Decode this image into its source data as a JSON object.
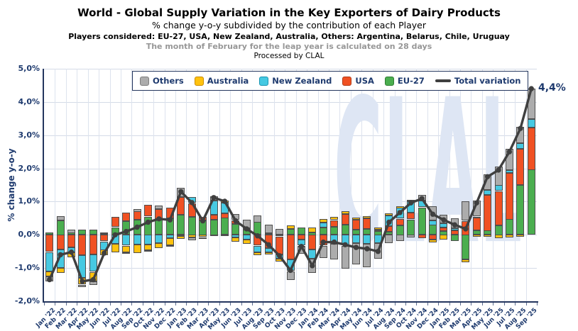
{
  "header": {
    "title": "World - Global Supply Variation in the Key Exporters of Dairy Products",
    "subtitle": "% change y-o-y subdivided by the contribution of each Player",
    "players_line": "Players considered: EU-27, USA, New Zealand, Australia, Others: Argentina, Belarus, Chile, Uruguay",
    "note": "The month of February for the leap year is calculated on 28 days",
    "processed_by": "Processed by CLAL"
  },
  "watermark": "CLAL",
  "annotation": {
    "label": "4,4%"
  },
  "chart_data": {
    "type": "bar",
    "subtype": "stacked-bars-with-total-line",
    "title": "World - Global Supply Variation in the Key Exporters of Dairy Products",
    "xlabel": "",
    "ylabel": "% change y-o-y",
    "ylim": [
      -2.0,
      5.0
    ],
    "grid": true,
    "legend_position": "top",
    "ytick_labels": [
      "5,0%",
      "4,0%",
      "3,0%",
      "2,0%",
      "1,0%",
      "0,0%",
      "-1,0%",
      "-2,0%"
    ],
    "categories": [
      "Jan '22",
      "Feb '22",
      "Mar '22",
      "Apr '22",
      "May '22",
      "Jun '22",
      "Jul '22",
      "Aug '22",
      "Sep '22",
      "Oct '22",
      "Nov '22",
      "Dec '22",
      "Jan '23",
      "Feb '23",
      "Mar '23",
      "Apr '23",
      "May '23",
      "Jun '23",
      "Jul '23",
      "Aug '23",
      "Sep '23",
      "Oct '23",
      "Nov '23",
      "Dec '23",
      "Jan '24",
      "Feb '24",
      "Mar '24",
      "Apr '24",
      "May '24",
      "Jun '24",
      "Jul '24",
      "Aug '24",
      "Sep '24",
      "Oct '24",
      "Nov '24",
      "Dec '24",
      "Jan '25",
      "Feb '25",
      "Mar '25",
      "Apr '25",
      "May '25",
      "Jun '25",
      "Jul '25",
      "Aug '25",
      "Sep '25"
    ],
    "series": [
      {
        "name": "Others",
        "color": "#ACACAC",
        "border": "#7e7e7e",
        "values": [
          -0.15,
          0.12,
          0.1,
          -0.06,
          -0.1,
          0.03,
          0.0,
          -0.03,
          0.08,
          -0.05,
          0.1,
          -0.04,
          0.28,
          -0.08,
          -0.05,
          0.13,
          -0.03,
          0.18,
          0.25,
          0.21,
          0.25,
          0.17,
          -0.25,
          -0.21,
          -0.42,
          -0.36,
          -0.48,
          -0.68,
          -0.64,
          -0.7,
          -0.48,
          -0.26,
          -0.2,
          -0.09,
          0.18,
          0.42,
          0.26,
          0.3,
          0.58,
          0.47,
          0.46,
          0.57,
          0.64,
          0.5,
          0.92
        ]
      },
      {
        "name": "Australia",
        "color": "#FFC20E",
        "border": "#c98a00",
        "values": [
          -0.16,
          -0.16,
          -0.16,
          -0.2,
          -0.28,
          -0.18,
          -0.25,
          -0.2,
          -0.25,
          -0.17,
          -0.15,
          -0.22,
          -0.08,
          -0.08,
          -0.07,
          -0.04,
          0.07,
          -0.12,
          -0.12,
          -0.09,
          -0.07,
          -0.08,
          0.11,
          -0.02,
          0.14,
          0.1,
          0.09,
          0.08,
          0.06,
          0.06,
          0.07,
          0.06,
          0.06,
          0.05,
          0.0,
          -0.09,
          -0.15,
          0.0,
          -0.08,
          -0.06,
          -0.06,
          -0.11,
          -0.09,
          -0.06,
          0.0
        ]
      },
      {
        "name": "New Zealand",
        "color": "#46C9E2",
        "border": "#1895b2",
        "values": [
          -0.58,
          -0.55,
          -0.14,
          -0.68,
          -0.52,
          -0.25,
          -0.28,
          -0.33,
          -0.3,
          -0.3,
          -0.25,
          -0.1,
          -0.03,
          0.18,
          0.0,
          0.42,
          0.32,
          -0.08,
          -0.15,
          -0.2,
          -0.13,
          -0.13,
          -0.35,
          -0.18,
          -0.28,
          0.16,
          -0.27,
          -0.33,
          -0.25,
          -0.28,
          -0.25,
          0.32,
          0.33,
          0.34,
          0.2,
          0.14,
          0.12,
          0.06,
          0.0,
          0.03,
          0.14,
          0.18,
          0.08,
          0.18,
          0.25
        ]
      },
      {
        "name": "USA",
        "color": "#F05123",
        "border": "#b23a14",
        "values": [
          -0.52,
          -0.45,
          -0.38,
          -0.62,
          -0.6,
          -0.2,
          0.3,
          0.25,
          0.25,
          0.35,
          0.3,
          0.32,
          0.53,
          0.4,
          0.1,
          0.15,
          0.14,
          0.11,
          0.05,
          -0.33,
          -0.4,
          -0.54,
          -0.75,
          -0.15,
          -0.45,
          -0.33,
          0.2,
          0.33,
          0.3,
          0.32,
          0.04,
          0.17,
          0.19,
          0.2,
          -0.11,
          -0.15,
          0.1,
          0.13,
          0.42,
          0.39,
          1.08,
          1.02,
          1.4,
          1.08,
          1.27
        ]
      },
      {
        "name": "EU-27",
        "color": "#4BAE4F",
        "border": "#2f7d33",
        "values": [
          0.06,
          0.44,
          0.06,
          0.16,
          0.15,
          0.05,
          0.23,
          0.41,
          0.45,
          0.55,
          0.48,
          0.49,
          0.6,
          0.55,
          0.44,
          0.46,
          0.51,
          0.33,
          0.15,
          0.38,
          0.05,
          -0.05,
          0.17,
          0.21,
          0.08,
          0.21,
          0.24,
          0.3,
          0.15,
          0.18,
          0.12,
          0.09,
          0.29,
          0.46,
          0.82,
          0.3,
          0.12,
          -0.19,
          -0.74,
          0.13,
          0.13,
          0.29,
          0.47,
          1.5,
          1.96
        ]
      }
    ],
    "total_line": {
      "name": "Total variation",
      "color": "#3f3f3f",
      "values": [
        -1.35,
        -0.6,
        -0.52,
        -1.4,
        -1.35,
        -0.55,
        0.0,
        0.1,
        0.23,
        0.38,
        0.48,
        0.45,
        1.3,
        0.97,
        0.42,
        1.12,
        1.01,
        0.42,
        0.18,
        -0.03,
        -0.3,
        -0.63,
        -1.07,
        -0.35,
        -0.93,
        -0.22,
        -0.22,
        -0.3,
        -0.38,
        -0.42,
        -0.5,
        0.38,
        0.67,
        0.96,
        1.09,
        0.62,
        0.45,
        0.3,
        0.18,
        0.96,
        1.75,
        1.95,
        2.5,
        3.2,
        4.4
      ]
    },
    "annotation_last_point": "4,4%"
  }
}
